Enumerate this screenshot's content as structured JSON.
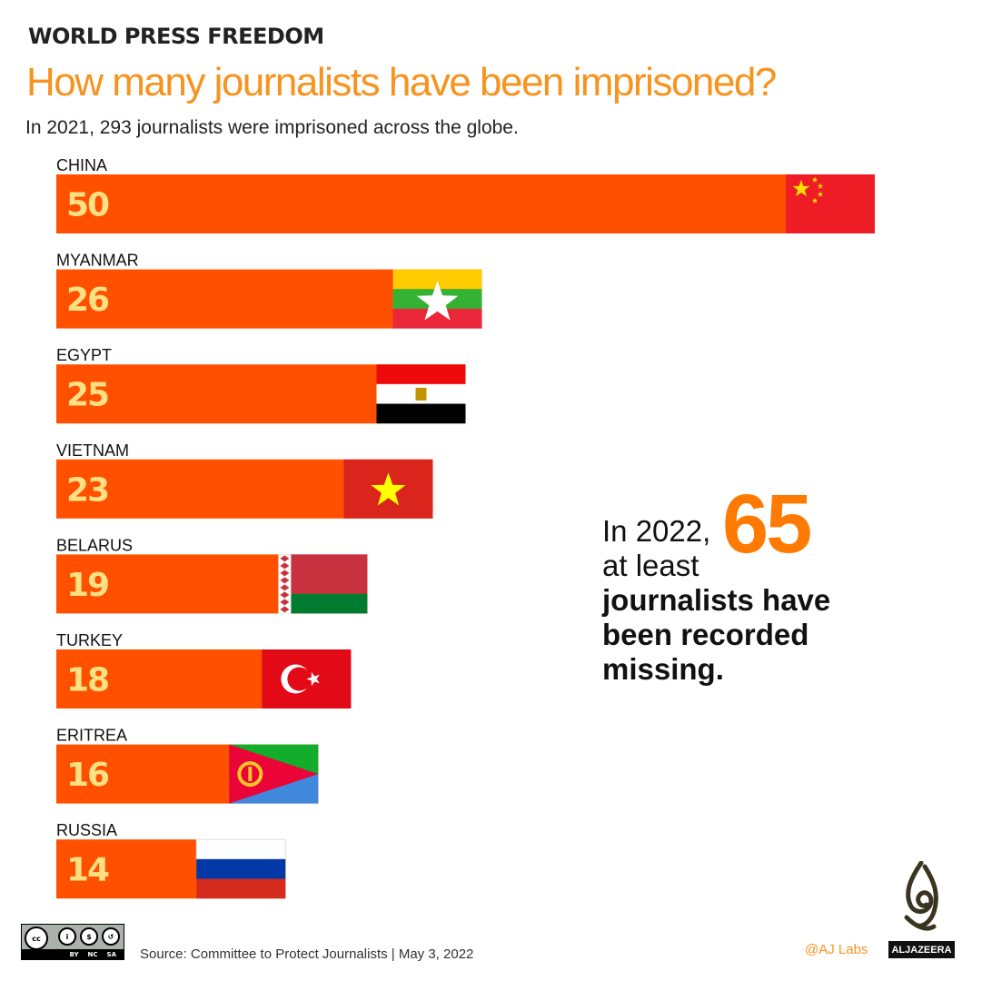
{
  "header": {
    "kicker": "WORLD PRESS FREEDOM",
    "title": "How many journalists have been imprisoned?",
    "subtitle": "In 2021, 293 journalists were imprisoned across the globe."
  },
  "chart_data": {
    "type": "bar",
    "orientation": "horizontal",
    "categories": [
      "CHINA",
      "MYANMAR",
      "EGYPT",
      "VIETNAM",
      "BELARUS",
      "TURKEY",
      "ERITREA",
      "RUSSIA"
    ],
    "values": [
      50,
      26,
      25,
      23,
      19,
      18,
      16,
      14
    ],
    "flags": [
      "china",
      "myanmar",
      "egypt",
      "vietnam",
      "belarus",
      "turkey",
      "eritrea",
      "russia"
    ],
    "bar_color": "#ff5000",
    "value_label_color": "#ffe082",
    "xlim": [
      0,
      50
    ]
  },
  "note": {
    "line1": "In 2022,",
    "line2": "at least",
    "number": "65",
    "rest": "journalists have been recorded missing."
  },
  "footer": {
    "license": [
      "cc",
      "BY",
      "NC",
      "SA"
    ],
    "source": "Source: Committee to Protect Journalists  | May 3, 2022",
    "credit": "@AJ Labs",
    "logo": "ALJAZEERA"
  }
}
